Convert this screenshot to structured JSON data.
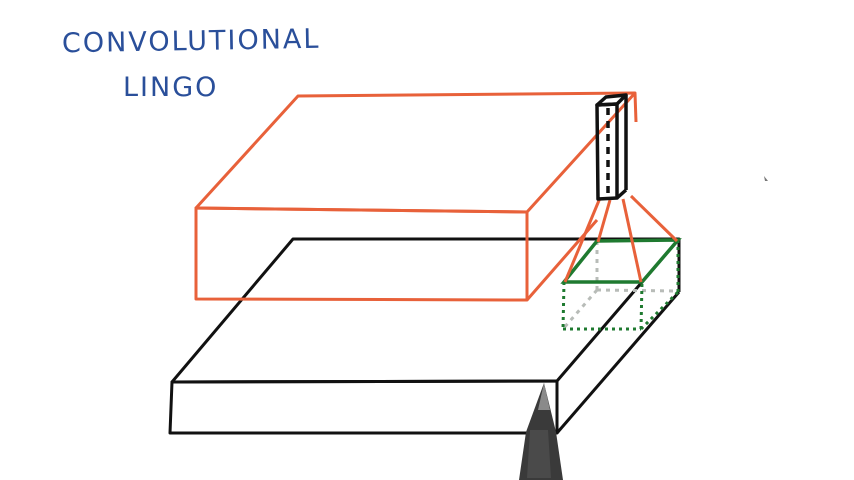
{
  "title": {
    "line1": "CONVOLUTIONAL",
    "line2": "LINGO"
  },
  "colors": {
    "text": "#2a4f9a",
    "orange_block": "#e8613a",
    "black_block": "#111111",
    "green_patch": "#1f7a30",
    "dotted_gray": "#b8bcb8",
    "pen": "#3a3a3a"
  }
}
